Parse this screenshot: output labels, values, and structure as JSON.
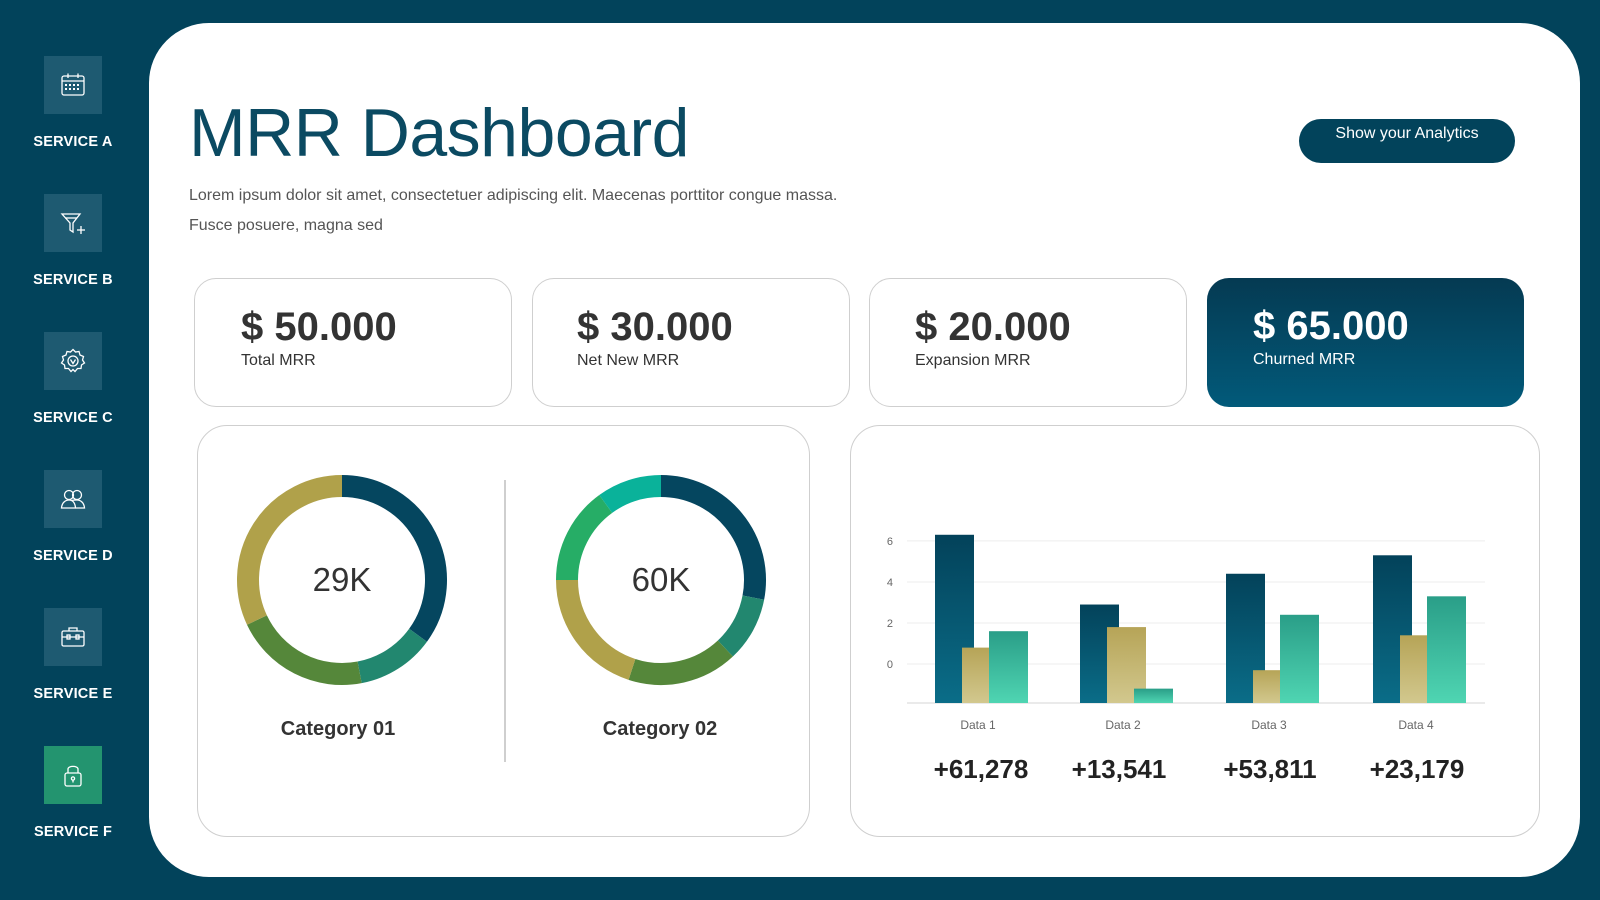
{
  "sidebar": {
    "items": [
      {
        "label": "SERVICE A",
        "icon": "calendar-icon"
      },
      {
        "label": "SERVICE B",
        "icon": "funnel-add-icon"
      },
      {
        "label": "SERVICE C",
        "icon": "gear-icon"
      },
      {
        "label": "SERVICE D",
        "icon": "users-icon"
      },
      {
        "label": "SERVICE E",
        "icon": "briefcase-icon"
      },
      {
        "label": "SERVICE F",
        "icon": "lock-icon"
      }
    ],
    "active_index": 5
  },
  "header": {
    "title": "MRR Dashboard",
    "subtitle": "Lorem ipsum dolor sit amet, consectetuer adipiscing elit. Maecenas porttitor congue massa. Fusce posuere, magna sed",
    "cta_label": "Show your Analytics"
  },
  "kpis": [
    {
      "value": "$ 50.000",
      "caption": "Total MRR"
    },
    {
      "value": "$ 30.000",
      "caption": "Net New MRR"
    },
    {
      "value": "$ 20.000",
      "caption": "Expansion MRR"
    },
    {
      "value": "$ 65.000",
      "caption": "Churned MRR"
    }
  ],
  "colors": {
    "background": "#02435b",
    "navy": "#0b4a62",
    "teal": "#23946f",
    "olive": "#b0a14a",
    "green": "#55873a",
    "bright_green": "#26ad66",
    "aqua": "#0ab29a"
  },
  "donuts": [
    {
      "center_label": "29K",
      "category": "Category 01",
      "segments": [
        {
          "fraction": 0.35,
          "color": "#05465f"
        },
        {
          "fraction": 0.12,
          "color": "#22876f"
        },
        {
          "fraction": 0.21,
          "color": "#55873a"
        },
        {
          "fraction": 0.32,
          "color": "#b0a14a"
        }
      ]
    },
    {
      "center_label": "60K",
      "category": "Category 02",
      "segments": [
        {
          "fraction": 0.28,
          "color": "#05465f"
        },
        {
          "fraction": 0.1,
          "color": "#22876f"
        },
        {
          "fraction": 0.17,
          "color": "#55873a"
        },
        {
          "fraction": 0.2,
          "color": "#b0a14a"
        },
        {
          "fraction": 0.15,
          "color": "#26ad66"
        },
        {
          "fraction": 0.1,
          "color": "#0ab29a"
        }
      ]
    }
  ],
  "chart_data": {
    "type": "bar",
    "categories": [
      "Data 1",
      "Data 2",
      "Data 3",
      "Data 4"
    ],
    "series": [
      {
        "values": [
          6.3,
          2.9,
          4.4,
          5.3
        ],
        "color": "#03425a"
      },
      {
        "values": [
          0.8,
          1.8,
          -0.3,
          1.4
        ],
        "color": "#b6a457"
      },
      {
        "values": [
          1.6,
          -1.2,
          2.4,
          3.3
        ],
        "color": "#2aa890"
      }
    ],
    "yticks": [
      0,
      2,
      4,
      6
    ],
    "ylim": [
      -1.9,
      7.8
    ],
    "grid": true,
    "growth_labels": [
      "+61,278",
      "+13,541",
      "+53,811",
      "+23,179"
    ]
  }
}
